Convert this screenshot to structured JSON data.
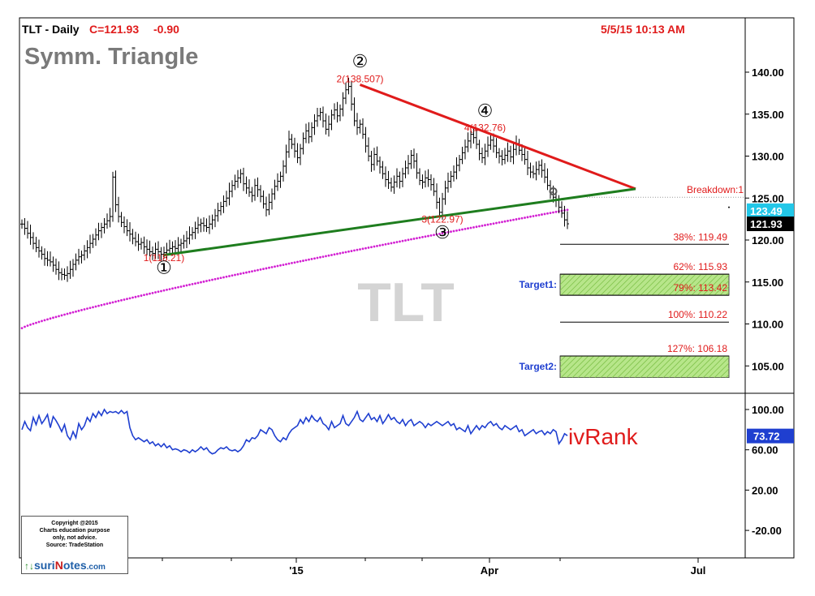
{
  "header": {
    "symbol": "TLT - Daily",
    "close": "C=121.93",
    "change": "-0.90",
    "timestamp": "5/5/15 10:13 AM",
    "pattern": "Symm. Triangle",
    "watermark": "TLT"
  },
  "colors": {
    "price_bars": "#000000",
    "resistance": "#e01b1b",
    "support": "#1e7d1e",
    "moving_average": "#d21ed2",
    "ivrank": "#1f3fd0",
    "red_text": "#e01b1b",
    "blue_text": "#1f3fd0",
    "target_fill": "#b7e68a",
    "price_tag": "#22c7e8"
  },
  "chart_data": [
    {
      "type": "ohlc-line",
      "title": "TLT - Daily",
      "x_ticks": [
        "'15",
        "Apr",
        "Jul"
      ],
      "y_ticks": [
        "140.00",
        "135.00",
        "130.00",
        "125.00",
        "120.00",
        "115.00",
        "110.00",
        "105.00"
      ],
      "ylim": [
        104,
        143
      ],
      "series": [
        {
          "style": "price-bars",
          "values": [
            121.9,
            121.4,
            120.8,
            120.3,
            119.6,
            119.1,
            118.7,
            118.3,
            117.8,
            117.6,
            117.4,
            117.0,
            116.5,
            116.1,
            115.9,
            115.8,
            116.0,
            116.5,
            117.1,
            117.6,
            118.0,
            118.2,
            118.7,
            119.1,
            119.6,
            120.1,
            120.6,
            121.1,
            121.5,
            121.9,
            122.3,
            122.8,
            127.5,
            124.2,
            122.8,
            122.1,
            121.6,
            121.1,
            120.7,
            120.2,
            119.8,
            119.5,
            119.7,
            119.2,
            118.9,
            118.6,
            118.4,
            118.9,
            118.6,
            118.3,
            118.5,
            118.8,
            119.0,
            119.2,
            119.0,
            119.4,
            119.6,
            119.9,
            120.2,
            120.6,
            120.9,
            121.4,
            121.8,
            122.0,
            121.7,
            121.5,
            121.9,
            122.4,
            122.9,
            123.5,
            124.0,
            124.6,
            125.0,
            125.8,
            126.5,
            127.0,
            127.4,
            127.9,
            126.7,
            126.2,
            125.7,
            125.3,
            126.5,
            126.0,
            125.2,
            124.3,
            123.6,
            124.5,
            125.5,
            126.4,
            127.0,
            127.6,
            128.8,
            130.5,
            132.0,
            131.4,
            130.6,
            129.8,
            130.9,
            132.1,
            133.0,
            132.3,
            133.4,
            134.2,
            134.8,
            135.2,
            134.2,
            133.2,
            133.8,
            134.9,
            135.5,
            134.8,
            135.6,
            136.9,
            137.9,
            138.3,
            136.2,
            134.2,
            133.4,
            133.8,
            132.6,
            131.2,
            130.0,
            129.0,
            130.2,
            129.4,
            128.7,
            127.9,
            127.2,
            126.8,
            126.3,
            126.9,
            127.6,
            127.0,
            127.9,
            128.6,
            129.1,
            130.1,
            129.4,
            128.0,
            127.1,
            126.9,
            127.4,
            127.2,
            126.6,
            125.8,
            124.5,
            123.3,
            124.9,
            126.2,
            127.0,
            127.6,
            128.1,
            128.9,
            129.6,
            130.4,
            131.1,
            131.8,
            132.6,
            132.2,
            131.4,
            130.3,
            129.8,
            130.6,
            131.3,
            131.9,
            131.2,
            130.4,
            130.0,
            129.6,
            130.1,
            130.6,
            129.9,
            130.8,
            131.5,
            130.7,
            130.2,
            129.6,
            128.6,
            128.1,
            127.9,
            128.4,
            128.9,
            128.3,
            127.5,
            126.5,
            125.7,
            125.1,
            124.8,
            123.9,
            123.2,
            122.4,
            121.93
          ]
        },
        {
          "style": "dotted-line",
          "name": "moving average",
          "x0": 0,
          "x1": 192,
          "y0": 109.5,
          "y1": 123.6
        },
        {
          "style": "trendline",
          "name": "resistance",
          "color": "#e01b1b",
          "from": [
            119,
            138.507
          ],
          "to": [
            216,
            126.1
          ]
        },
        {
          "style": "trendline",
          "name": "support",
          "color": "#1e7d1e",
          "from": [
            50,
            118.21
          ],
          "to": [
            216,
            126.1
          ]
        }
      ],
      "price_tags": [
        {
          "value": 123.49,
          "label": "123.49",
          "style": "cyan"
        },
        {
          "value": 121.93,
          "label": "121.93",
          "style": "black"
        }
      ],
      "breakdown": {
        "label": "Breakdown:1",
        "value": 125.1
      },
      "wave_markers": [
        {
          "symbol": "①",
          "x": 50,
          "y": 116.0
        },
        {
          "symbol": "②",
          "x": 119,
          "y": 140.6
        },
        {
          "symbol": "③",
          "x": 148,
          "y": 120.2
        },
        {
          "symbol": "④",
          "x": 163,
          "y": 134.7
        }
      ],
      "wave_labels": [
        {
          "text": "1(118.21)",
          "x": 50,
          "y": 117.5
        },
        {
          "text": "2(138.507)",
          "x": 119,
          "y": 138.8
        },
        {
          "text": "3(122.97)",
          "x": 148,
          "y": 122.1
        },
        {
          "text": "4(132.76)",
          "x": 163,
          "y": 133.0
        }
      ],
      "fib_levels": [
        {
          "label": "38%: 119.49",
          "value": 119.49
        },
        {
          "label": "62%: 115.93",
          "value": 115.93
        },
        {
          "label": "79%: 113.42",
          "value": 113.42
        },
        {
          "label": "100%: 110.22",
          "value": 110.22
        },
        {
          "label": "127%: 106.18",
          "value": 106.18
        }
      ],
      "targets": [
        {
          "label": "Target1:",
          "from": 113.42,
          "to": 115.93
        },
        {
          "label": "Target2:",
          "from": 103.6,
          "to": 106.18
        }
      ]
    },
    {
      "type": "line",
      "title": "ivRank",
      "y_ticks": [
        "100.00",
        "60.00",
        "20.00",
        "-20.00"
      ],
      "ylim": [
        -30,
        110
      ],
      "current": "73.72",
      "values": [
        80,
        88,
        82,
        79,
        92,
        85,
        94,
        86,
        90,
        95,
        82,
        93,
        89,
        84,
        78,
        85,
        74,
        70,
        78,
        72,
        86,
        80,
        84,
        92,
        88,
        96,
        92,
        98,
        94,
        100,
        96,
        98,
        97,
        98,
        96,
        99,
        96,
        98,
        82,
        74,
        70,
        72,
        70,
        68,
        70,
        66,
        68,
        64,
        66,
        63,
        66,
        62,
        64,
        60,
        61,
        60,
        58,
        60,
        59,
        57,
        60,
        58,
        60,
        63,
        60,
        62,
        58,
        56,
        57,
        60,
        62,
        61,
        63,
        60,
        59,
        60,
        58,
        60,
        64,
        70,
        68,
        72,
        71,
        74,
        80,
        78,
        76,
        82,
        80,
        74,
        70,
        68,
        72,
        70,
        76,
        80,
        82,
        84,
        90,
        86,
        92,
        88,
        94,
        90,
        88,
        92,
        86,
        84,
        80,
        88,
        82,
        84,
        86,
        94,
        86,
        84,
        88,
        92,
        98,
        90,
        88,
        92,
        96,
        90,
        92,
        88,
        94,
        86,
        90,
        95,
        90,
        92,
        88,
        86,
        90,
        84,
        88,
        90,
        84,
        86,
        88,
        86,
        82,
        86,
        84,
        86,
        88,
        86,
        84,
        86,
        88,
        84,
        86,
        80,
        82,
        80,
        78,
        84,
        76,
        80,
        84,
        80,
        84,
        82,
        86,
        88,
        84,
        86,
        82,
        80,
        84,
        82,
        80,
        82,
        84,
        78,
        80,
        74,
        76,
        78,
        80,
        76,
        78,
        79,
        75,
        78,
        76,
        80,
        78,
        66,
        70,
        76,
        74.0
      ]
    }
  ],
  "copyright": {
    "line1": "Copyright @2015",
    "line2": "Charts education purpose",
    "line3": "only, not advice.",
    "line4": "Source: TradeStation"
  },
  "logo": {
    "prefix": "↑↓",
    "su": "suri",
    "n": "N",
    "otes": "otes",
    "dotcom": ".com"
  }
}
